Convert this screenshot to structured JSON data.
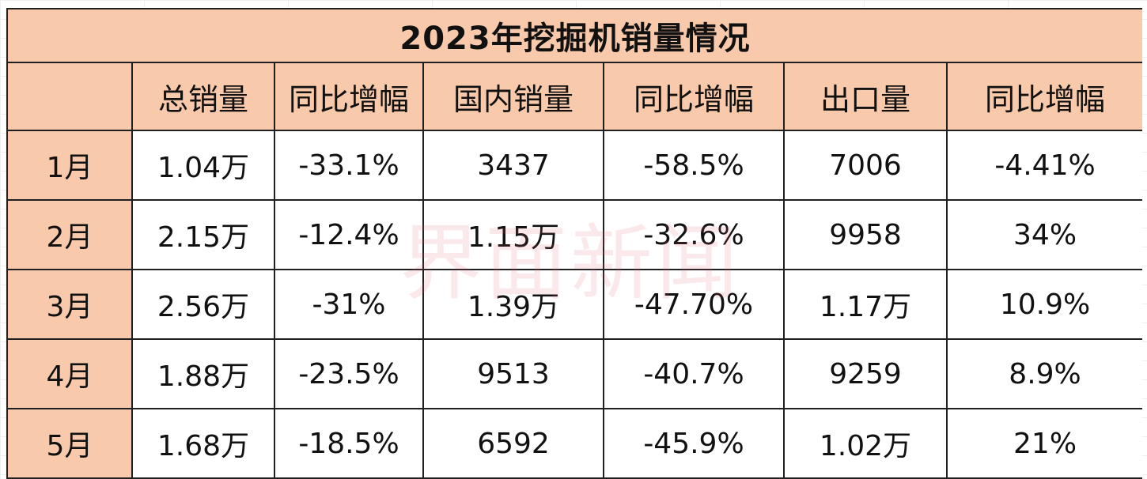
{
  "chart_data": {
    "type": "table",
    "title": "2023年挖掘机销量情况",
    "columns": [
      "",
      "总销量",
      "同比增幅",
      "国内销量",
      "同比增幅",
      "出口量",
      "同比增幅"
    ],
    "rows": [
      [
        "1月",
        "1.04万",
        "-33.1%",
        "3437",
        "-58.5%",
        "7006",
        "-4.41%"
      ],
      [
        "2月",
        "2.15万",
        "-12.4%",
        "1.15万",
        "-32.6%",
        "9958",
        "34%"
      ],
      [
        "3月",
        "2.56万",
        "-31%",
        "1.39万",
        "-47.70%",
        "1.17万",
        "10.9%"
      ],
      [
        "4月",
        "1.88万",
        "-23.5%",
        "9513",
        "-40.7%",
        "9259",
        "8.9%"
      ],
      [
        "5月",
        "1.68万",
        "-18.5%",
        "6592",
        "-45.9%",
        "1.02万",
        "21%"
      ]
    ],
    "watermark": "界面新闻",
    "colors": {
      "header_fill": "#f8c9aa",
      "border": "#202020",
      "cell_fill": "#ffffff"
    }
  }
}
